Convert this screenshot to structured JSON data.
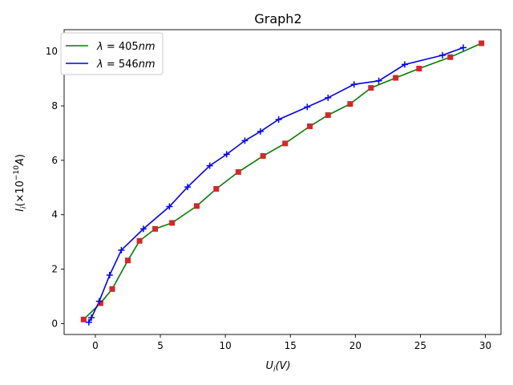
{
  "chart_data": {
    "type": "line",
    "title": "Graph2",
    "xlabel": "U_i(V)",
    "ylabel": "I_i(×10^{-10}A)",
    "xlim": [
      -2.4,
      31.2
    ],
    "ylim": [
      -0.4,
      10.8
    ],
    "xticks": [
      0,
      5,
      10,
      15,
      20,
      25,
      30
    ],
    "yticks": [
      0,
      2,
      4,
      6,
      8,
      10
    ],
    "grid": false,
    "legend_position": "top-left",
    "series": [
      {
        "name": "λ=405nm",
        "line_color": "#008000",
        "marker": "square",
        "marker_color": "#d62728",
        "x": [
          -0.9,
          0.4,
          1.3,
          2.5,
          3.4,
          4.6,
          5.9,
          7.8,
          9.3,
          11.0,
          12.9,
          14.6,
          16.5,
          17.9,
          19.6,
          21.2,
          23.1,
          24.9,
          27.3,
          29.7
        ],
        "y": [
          0.15,
          0.75,
          1.27,
          2.32,
          3.04,
          3.48,
          3.7,
          4.32,
          4.95,
          5.57,
          6.16,
          6.62,
          7.25,
          7.66,
          8.07,
          8.66,
          9.03,
          9.37,
          9.79,
          10.3
        ]
      },
      {
        "name": "λ=546nm",
        "line_color": "#0000ff",
        "marker": "plus",
        "marker_color": "#0000ff",
        "x": [
          -0.5,
          -0.3,
          0.3,
          1.1,
          2.0,
          3.7,
          5.7,
          7.1,
          8.8,
          10.1,
          11.5,
          12.7,
          14.1,
          16.3,
          17.9,
          19.9,
          21.8,
          23.8,
          26.7,
          28.3
        ],
        "y": [
          0.05,
          0.22,
          0.82,
          1.78,
          2.7,
          3.48,
          4.3,
          5.02,
          5.8,
          6.22,
          6.72,
          7.06,
          7.5,
          7.96,
          8.3,
          8.79,
          8.92,
          9.52,
          9.86,
          10.14
        ]
      }
    ]
  }
}
